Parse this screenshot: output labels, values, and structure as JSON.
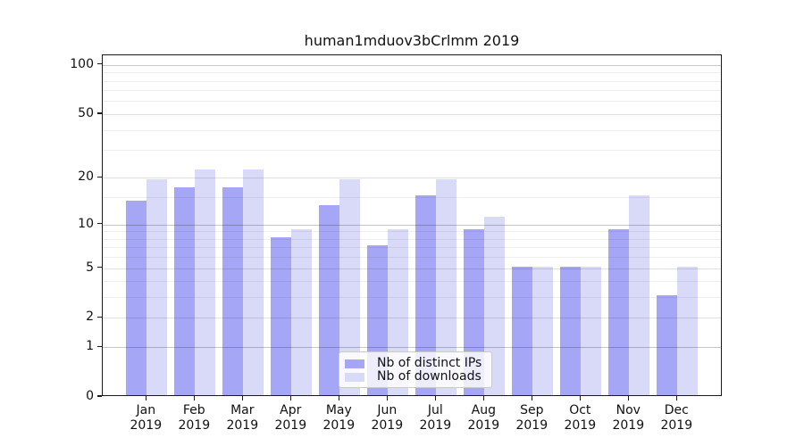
{
  "chart_data": {
    "type": "bar",
    "title": "human1mduov3bCrlmm 2019",
    "year_label": "2019",
    "categories": [
      "Jan",
      "Feb",
      "Mar",
      "Apr",
      "May",
      "Jun",
      "Jul",
      "Aug",
      "Sep",
      "Oct",
      "Nov",
      "Dec"
    ],
    "series": [
      {
        "name": "Nb of distinct IPs",
        "color": "#a6a6f7",
        "values": [
          14,
          17,
          17,
          8,
          13,
          7,
          15,
          9,
          5,
          5,
          9,
          3
        ]
      },
      {
        "name": "Nb of downloads",
        "color": "#d9d9f8",
        "values": [
          19,
          22,
          22,
          9,
          19,
          9,
          19,
          11,
          5,
          5,
          15,
          5
        ]
      }
    ],
    "yscale": "log10(1+y)",
    "yticks": [
      0,
      1,
      2,
      5,
      10,
      20,
      50,
      100
    ],
    "minor_gridlines": [
      3,
      4,
      6,
      7,
      8,
      9,
      15,
      30,
      40,
      60,
      70,
      80,
      90
    ],
    "ylim": [
      0,
      114.5
    ],
    "grid": true,
    "legend_position": "lower center",
    "background_color": "#ffffff",
    "axis_color": "#1a1a1a"
  }
}
